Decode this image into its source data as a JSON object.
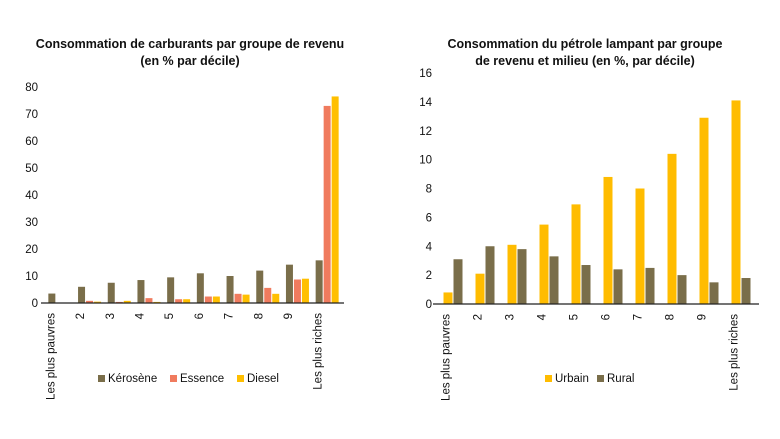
{
  "chart_data": [
    {
      "type": "bar",
      "title": "Consommation de carburants par groupe de revenu (en % par décile)",
      "title_lines": [
        "Consommation de carburants par groupe de revenu",
        "(en % par décile)"
      ],
      "categories": [
        "Les plus pauvres",
        "2",
        "3",
        "4",
        "5",
        "6",
        "7",
        "8",
        "9",
        "Les plus riches"
      ],
      "ylim": [
        0,
        80
      ],
      "yticks": [
        0,
        10,
        20,
        30,
        40,
        50,
        60,
        70,
        80
      ],
      "grid": false,
      "legend": "bottom",
      "series": [
        {
          "name": "Kérosène",
          "color": "#7a6e4a",
          "values": [
            3.5,
            6,
            7.5,
            8.5,
            9.5,
            11,
            10,
            12,
            14.2,
            15.8
          ]
        },
        {
          "name": "Essence",
          "color": "#f07b5e",
          "values": [
            0,
            0.8,
            0.4,
            1.8,
            1.4,
            2.4,
            3.4,
            5.6,
            8.7,
            73
          ]
        },
        {
          "name": "Diesel",
          "color": "#ffbf00",
          "values": [
            0,
            0.5,
            0.8,
            0.4,
            1.4,
            2.4,
            3.1,
            3.4,
            9,
            76.5
          ]
        }
      ]
    },
    {
      "type": "bar",
      "title": "Consommation du pétrole lampant par groupe de revenu et milieu (en %, par décile)",
      "title_lines": [
        "Consommation du pétrole lampant par groupe",
        "de revenu et milieu (en %, par décile)"
      ],
      "categories": [
        "Les plus pauvres",
        "2",
        "3",
        "4",
        "5",
        "6",
        "7",
        "8",
        "9",
        "Les plus riches"
      ],
      "ylim": [
        0,
        16
      ],
      "yticks": [
        0,
        2,
        4,
        6,
        8,
        10,
        12,
        14,
        16
      ],
      "grid": false,
      "legend": "bottom",
      "series": [
        {
          "name": "Urbain",
          "color": "#ffbc00",
          "values": [
            0.8,
            2.1,
            4.1,
            5.5,
            6.9,
            8.8,
            8,
            10.4,
            12.9,
            14.1
          ]
        },
        {
          "name": "Rural",
          "color": "#7a6e4a",
          "values": [
            3.1,
            4,
            3.8,
            3.3,
            2.7,
            2.4,
            2.5,
            2,
            1.5,
            1.8
          ]
        }
      ]
    }
  ]
}
